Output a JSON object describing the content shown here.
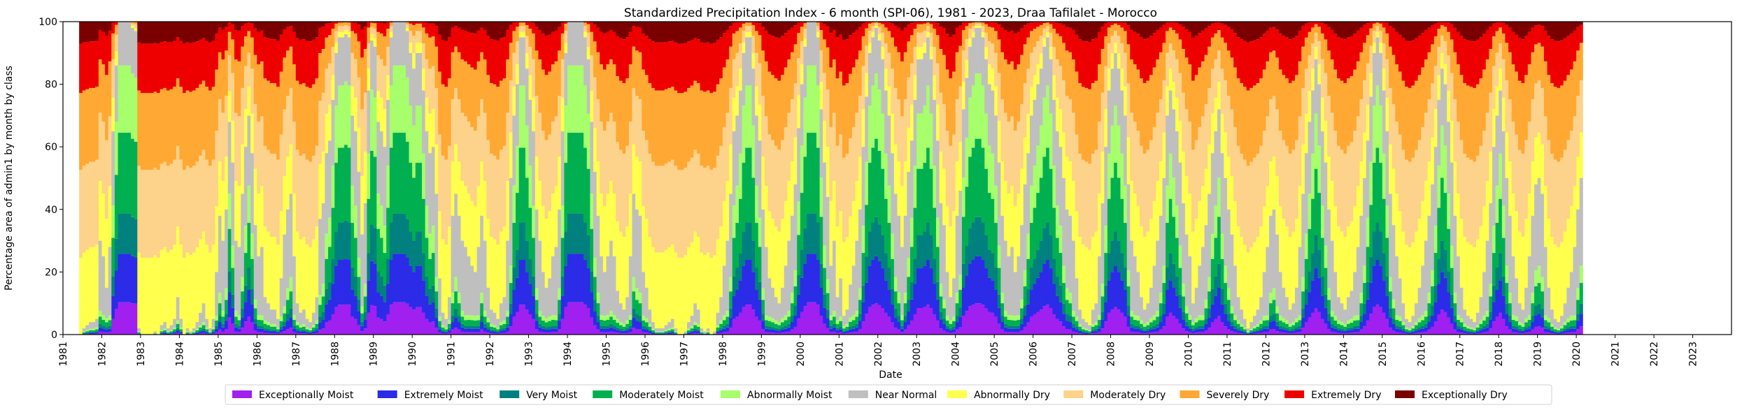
{
  "chart_data": {
    "type": "area",
    "stacked": true,
    "title": "Standardized Precipitation Index - 6 month (SPI-06), 1981 - 2023, Draa Tafilalet - Morocco",
    "xlabel": "Date",
    "ylabel": "Percentage area of admin1 by month by class",
    "ylim": [
      0,
      100
    ],
    "yticks": [
      0,
      20,
      40,
      60,
      80,
      100
    ],
    "x_range": [
      "1981-01",
      "2023-12"
    ],
    "xticks": [
      "1981",
      "1982",
      "1983",
      "1984",
      "1985",
      "1986",
      "1987",
      "1988",
      "1989",
      "1990",
      "1991",
      "1992",
      "1993",
      "1994",
      "1995",
      "1996",
      "1997",
      "1998",
      "1999",
      "2000",
      "2001",
      "2002",
      "2003",
      "2004",
      "2005",
      "2006",
      "2007",
      "2008",
      "2009",
      "2010",
      "2011",
      "2012",
      "2013",
      "2014",
      "2015",
      "2016",
      "2017",
      "2018",
      "2019",
      "2020",
      "2021",
      "2022",
      "2023"
    ],
    "legend_position": "bottom-center",
    "grid": false,
    "classes": [
      {
        "name": "Exceptionally Moist",
        "color": "#a020f0"
      },
      {
        "name": "Extremely Moist",
        "color": "#2b2be8"
      },
      {
        "name": "Very Moist",
        "color": "#00807f"
      },
      {
        "name": "Moderately Moist",
        "color": "#00b050"
      },
      {
        "name": "Abnormally Moist",
        "color": "#a6ff6b"
      },
      {
        "name": "Near Normal",
        "color": "#bfbfbf"
      },
      {
        "name": "Abnormally Dry",
        "color": "#ffff4d"
      },
      {
        "name": "Moderately Dry",
        "color": "#fdd28a"
      },
      {
        "name": "Severely Dry",
        "color": "#ffa833"
      },
      {
        "name": "Extremely Dry",
        "color": "#ee0000"
      },
      {
        "name": "Exceptionally Dry",
        "color": "#7a0000"
      }
    ],
    "series_start": "1981-06",
    "series_interval": "month",
    "dry_shares": [
      1.0,
      0.98,
      0.97,
      0.96,
      0.96,
      0.95,
      0.7,
      0.75,
      0.85,
      0.72,
      0.35,
      0.14,
      0.0,
      0.0,
      0.0,
      0.0,
      0.02,
      0.03,
      0.98,
      1.0,
      1.0,
      1.0,
      1.0,
      0.99,
      1.0,
      0.97,
      0.96,
      0.98,
      0.97,
      0.95,
      0.88,
      0.95,
      1.0,
      0.98,
      0.99,
      0.98,
      0.96,
      0.93,
      0.9,
      0.95,
      0.98,
      0.95,
      0.8,
      0.62,
      0.7,
      0.6,
      0.32,
      0.45,
      0.7,
      0.72,
      0.55,
      0.4,
      0.3,
      0.42,
      0.65,
      0.75,
      0.72,
      0.88,
      0.9,
      0.92,
      0.92,
      0.95,
      0.82,
      0.68,
      0.6,
      0.55,
      0.75,
      0.9,
      0.93,
      0.92,
      0.95,
      0.96,
      0.93,
      0.88,
      0.63,
      0.58,
      0.42,
      0.38,
      0.25,
      0.1,
      0.05,
      0.05,
      0.04,
      0.05,
      0.3,
      0.35,
      0.48,
      0.68,
      0.58,
      0.22,
      0.06,
      0.08,
      0.32,
      0.35,
      0.4,
      0.25,
      0.05,
      0.0,
      0.0,
      0.0,
      0.0,
      0.03,
      0.1,
      0.15,
      0.1,
      0.1,
      0.22,
      0.35,
      0.42,
      0.4,
      0.55,
      0.82,
      0.93,
      0.95,
      0.88,
      0.62,
      0.55,
      0.62,
      0.7,
      0.72,
      0.75,
      0.78,
      0.8,
      0.72,
      0.62,
      0.7,
      0.85,
      0.92,
      0.93,
      0.95,
      0.9,
      0.88,
      0.7,
      0.5,
      0.3,
      0.2,
      0.05,
      0.05,
      0.15,
      0.25,
      0.35,
      0.6,
      0.7,
      0.8,
      0.85,
      0.82,
      0.75,
      0.72,
      0.6,
      0.35,
      0.1,
      0.0,
      0.0,
      0.0,
      0.0,
      0.0,
      0.05,
      0.12,
      0.32,
      0.48,
      0.62,
      0.75,
      0.8,
      0.75,
      0.7,
      0.75,
      0.86,
      0.9,
      0.92,
      0.88,
      0.75,
      0.55,
      0.6,
      0.62,
      0.8,
      0.85,
      0.92,
      0.96,
      0.98,
      0.98,
      0.98,
      0.97,
      0.96,
      0.95,
      0.98,
      1.0,
      1.0,
      0.99,
      0.96,
      0.94,
      0.9,
      0.92,
      0.98,
      0.99,
      0.98,
      1.0,
      0.99,
      0.93,
      0.88,
      0.78,
      0.7,
      0.55,
      0.35,
      0.3,
      0.22,
      0.1,
      0.05,
      0.05,
      0.15,
      0.3,
      0.38,
      0.6,
      0.72,
      0.82,
      0.85,
      0.88,
      0.9,
      0.85,
      0.78,
      0.7,
      0.62,
      0.52,
      0.34,
      0.2,
      0.08,
      0.0,
      0.0,
      0.0,
      0.05,
      0.28,
      0.45,
      0.56,
      0.78,
      0.7,
      0.88,
      0.82,
      0.94,
      0.92,
      0.84,
      0.78,
      0.7,
      0.6,
      0.4,
      0.24,
      0.1,
      0.05,
      0.02,
      0.06,
      0.12,
      0.22,
      0.3,
      0.42,
      0.55,
      0.62,
      0.72,
      0.62,
      0.48,
      0.38,
      0.25,
      0.12,
      0.12,
      0.1,
      0.05,
      0.12,
      0.25,
      0.38,
      0.58,
      0.65,
      0.8,
      0.88,
      0.82,
      0.62,
      0.54,
      0.28,
      0.18,
      0.08,
      0.05,
      0.02,
      0.02,
      0.05,
      0.12,
      0.2,
      0.22,
      0.3,
      0.45,
      0.62,
      0.7,
      0.75,
      0.72,
      0.8,
      0.75,
      0.65,
      0.52,
      0.42,
      0.3,
      0.25,
      0.2,
      0.15,
      0.08,
      0.05,
      0.12,
      0.25,
      0.35,
      0.4,
      0.5,
      0.6,
      0.62,
      0.7,
      0.82,
      0.92,
      0.95,
      0.96,
      0.97,
      0.92,
      0.9,
      0.75,
      0.58,
      0.4,
      0.22,
      0.15,
      0.1,
      0.15,
      0.22,
      0.3,
      0.52,
      0.7,
      0.75,
      0.8,
      0.88,
      0.92,
      0.9,
      0.85,
      0.78,
      0.7,
      0.62,
      0.5,
      0.3,
      0.22,
      0.28,
      0.35,
      0.45,
      0.58,
      0.68,
      0.75,
      0.9,
      0.85,
      0.78,
      0.72,
      0.65,
      0.55,
      0.42,
      0.35,
      0.28,
      0.42,
      0.5,
      0.6,
      0.68,
      0.78,
      0.88,
      0.92,
      0.95,
      0.98,
      0.96,
      0.94,
      0.92,
      0.88,
      0.8,
      0.72,
      0.62,
      0.6,
      0.68,
      0.8,
      0.85,
      0.88,
      0.92,
      0.9,
      0.85,
      0.72,
      0.55,
      0.42,
      0.32,
      0.22,
      0.12,
      0.2,
      0.35,
      0.45,
      0.6,
      0.7,
      0.8,
      0.88,
      0.9,
      0.92,
      0.88,
      0.86,
      0.8,
      0.72,
      0.62,
      0.5,
      0.38,
      0.24,
      0.1,
      0.05,
      0.1,
      0.22,
      0.35,
      0.55,
      0.65,
      0.75,
      0.82,
      0.9,
      0.95,
      0.96,
      0.94,
      0.9,
      0.85,
      0.78,
      0.7,
      0.62,
      0.52,
      0.4,
      0.25,
      0.15,
      0.2,
      0.32,
      0.45,
      0.62,
      0.75,
      0.85,
      0.92,
      0.94,
      0.95,
      0.96,
      0.93,
      0.88,
      0.8,
      0.7,
      0.58,
      0.4,
      0.3,
      0.22,
      0.35,
      0.5,
      0.62,
      0.75,
      0.82,
      0.9,
      0.92,
      0.85,
      0.75,
      0.62,
      0.52,
      0.5,
      0.55,
      0.72,
      0.85,
      0.92,
      0.95,
      0.96,
      0.94,
      0.9,
      0.85,
      0.8,
      0.72,
      0.6,
      0.5
    ],
    "near_normal_share": 0.28
  },
  "legend": {
    "items": [
      "Exceptionally Moist",
      "Extremely Moist",
      "Very Moist",
      "Moderately Moist",
      "Abnormally Moist",
      "Near Normal",
      "Abnormally Dry",
      "Moderately Dry",
      "Severely Dry",
      "Extremely Dry",
      "Exceptionally Dry"
    ]
  }
}
